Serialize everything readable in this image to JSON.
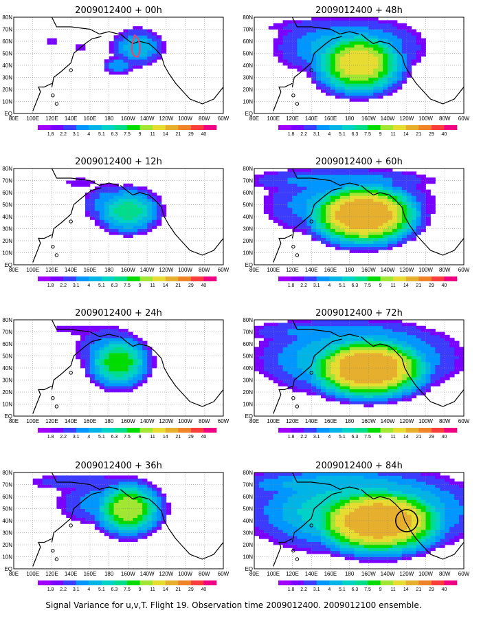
{
  "figure": {
    "caption": "Signal Variance for u,v,T. Flight 19. Observation time 2009012400. 2009012100 ensemble."
  },
  "colorbar": {
    "levels": [
      "1.8",
      "2.2",
      "3.1",
      "4",
      "5.1",
      "6.3",
      "7.5",
      "9",
      "11",
      "14",
      "21",
      "29",
      "40"
    ],
    "colors": [
      "#9f00ff",
      "#7a00ff",
      "#3c3cff",
      "#0096ff",
      "#00b4e6",
      "#00d2c8",
      "#00dc8c",
      "#00dc00",
      "#a0e632",
      "#e6dc32",
      "#e6af2d",
      "#f08228",
      "#fa3c3c",
      "#f00082"
    ]
  },
  "axes": {
    "x_ticks": [
      "80E",
      "100E",
      "120E",
      "140E",
      "160E",
      "180",
      "160W",
      "140W",
      "120W",
      "100W",
      "80W",
      "60W"
    ],
    "y_ticks": [
      "80N",
      "70N",
      "60N",
      "50N",
      "40N",
      "30N",
      "20N",
      "10N",
      "EQ"
    ]
  },
  "chart_data": [
    {
      "type": "heatmap",
      "title": "2009012400 + 00h",
      "lead_hours": 0,
      "xlim": [
        80,
        300
      ],
      "ylim": [
        0,
        80
      ],
      "blobs": [
        {
          "lon": 210,
          "lat": 55,
          "rx": 28,
          "ry": 16,
          "peak": 5.1
        },
        {
          "lon": 190,
          "lat": 40,
          "rx": 18,
          "ry": 8,
          "peak": 4
        },
        {
          "lon": 150,
          "lat": 55,
          "rx": 10,
          "ry": 6,
          "peak": 2.2
        },
        {
          "lon": 120,
          "lat": 60,
          "rx": 8,
          "ry": 5,
          "peak": 2.2
        }
      ],
      "annotations": [
        "magenta-outline-region"
      ]
    },
    {
      "type": "heatmap",
      "title": "2009012400 + 12h",
      "lead_hours": 12,
      "xlim": [
        80,
        300
      ],
      "ylim": [
        0,
        80
      ],
      "blobs": [
        {
          "lon": 200,
          "lat": 45,
          "rx": 32,
          "ry": 18,
          "peak": 7.5
        },
        {
          "lon": 180,
          "lat": 50,
          "rx": 30,
          "ry": 20,
          "peak": 4
        },
        {
          "lon": 150,
          "lat": 68,
          "rx": 30,
          "ry": 8,
          "peak": 2.2
        }
      ]
    },
    {
      "type": "heatmap",
      "title": "2009012400 + 24h",
      "lead_hours": 24,
      "xlim": [
        80,
        300
      ],
      "ylim": [
        0,
        80
      ],
      "blobs": [
        {
          "lon": 190,
          "lat": 45,
          "rx": 30,
          "ry": 20,
          "peak": 9
        },
        {
          "lon": 180,
          "lat": 55,
          "rx": 40,
          "ry": 22,
          "peak": 4
        },
        {
          "lon": 150,
          "lat": 72,
          "rx": 60,
          "ry": 8,
          "peak": 2.2
        }
      ]
    },
    {
      "type": "heatmap",
      "title": "2009012400 + 36h",
      "lead_hours": 36,
      "xlim": [
        80,
        300
      ],
      "ylim": [
        0,
        80
      ],
      "blobs": [
        {
          "lon": 200,
          "lat": 50,
          "rx": 32,
          "ry": 20,
          "peak": 11
        },
        {
          "lon": 180,
          "lat": 55,
          "rx": 60,
          "ry": 22,
          "peak": 4
        },
        {
          "lon": 150,
          "lat": 72,
          "rx": 70,
          "ry": 9,
          "peak": 3.1
        }
      ]
    },
    {
      "type": "heatmap",
      "title": "2009012400 + 48h",
      "lead_hours": 48,
      "xlim": [
        80,
        300
      ],
      "ylim": [
        0,
        80
      ],
      "blobs": [
        {
          "lon": 190,
          "lat": 42,
          "rx": 40,
          "ry": 22,
          "peak": 14
        },
        {
          "lon": 180,
          "lat": 55,
          "rx": 80,
          "ry": 25,
          "peak": 5.1
        },
        {
          "lon": 170,
          "lat": 72,
          "rx": 100,
          "ry": 10,
          "peak": 3.1
        }
      ]
    },
    {
      "type": "heatmap",
      "title": "2009012400 + 60h",
      "lead_hours": 60,
      "xlim": [
        80,
        300
      ],
      "ylim": [
        0,
        80
      ],
      "blobs": [
        {
          "lon": 195,
          "lat": 42,
          "rx": 45,
          "ry": 20,
          "peak": 21
        },
        {
          "lon": 180,
          "lat": 50,
          "rx": 90,
          "ry": 28,
          "peak": 5.1
        },
        {
          "lon": 170,
          "lat": 70,
          "rx": 110,
          "ry": 12,
          "peak": 4
        }
      ]
    },
    {
      "type": "heatmap",
      "title": "2009012400 + 72h",
      "lead_hours": 72,
      "xlim": [
        80,
        300
      ],
      "ylim": [
        0,
        80
      ],
      "blobs": [
        {
          "lon": 200,
          "lat": 40,
          "rx": 50,
          "ry": 20,
          "peak": 21
        },
        {
          "lon": 190,
          "lat": 48,
          "rx": 100,
          "ry": 30,
          "peak": 6.3
        },
        {
          "lon": 170,
          "lat": 70,
          "rx": 110,
          "ry": 12,
          "peak": 4
        }
      ]
    },
    {
      "type": "heatmap",
      "title": "2009012400 + 84h",
      "lead_hours": 84,
      "xlim": [
        80,
        300
      ],
      "ylim": [
        0,
        80
      ],
      "blobs": [
        {
          "lon": 210,
          "lat": 40,
          "rx": 55,
          "ry": 22,
          "peak": 21
        },
        {
          "lon": 195,
          "lat": 48,
          "rx": 110,
          "ry": 32,
          "peak": 7.5
        },
        {
          "lon": 170,
          "lat": 70,
          "rx": 120,
          "ry": 14,
          "peak": 5.1
        }
      ],
      "annotations": [
        "circle-near-120W-40N"
      ]
    }
  ]
}
